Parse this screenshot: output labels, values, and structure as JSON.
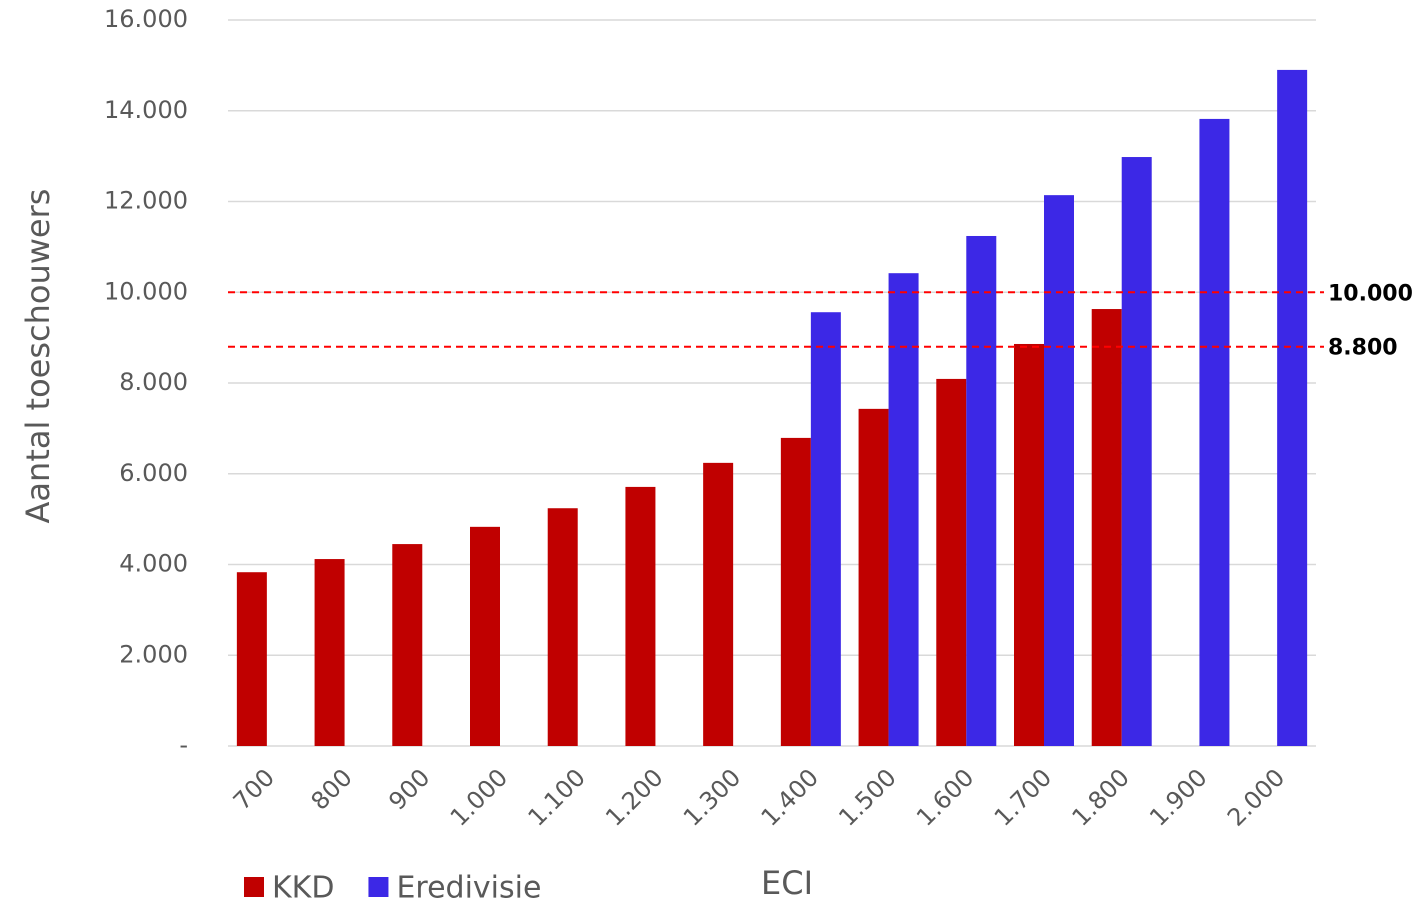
{
  "chart_data": {
    "type": "bar",
    "y_label": "Aantal toeschouwers",
    "x_label": "ECI",
    "categories": [
      "700",
      "800",
      "900",
      "1.000",
      "1.100",
      "1.200",
      "1.300",
      "1.400",
      "1.500",
      "1.600",
      "1.700",
      "1.800",
      "1.900",
      "2.000"
    ],
    "series": [
      {
        "name": "KKD",
        "color": "#c00000",
        "values": [
          3830,
          4120,
          4450,
          4830,
          5240,
          5710,
          6240,
          6790,
          7430,
          8090,
          8860,
          9630,
          null,
          null
        ]
      },
      {
        "name": "Eredivisie",
        "color": "#3c28e6",
        "values": [
          null,
          null,
          null,
          null,
          null,
          null,
          null,
          9560,
          10420,
          11240,
          12140,
          12980,
          13820,
          14900
        ]
      }
    ],
    "ylim": [
      0,
      16000
    ],
    "yticks": [
      {
        "value": 0,
        "label": "-"
      },
      {
        "value": 2000,
        "label": "2.000"
      },
      {
        "value": 4000,
        "label": "4.000"
      },
      {
        "value": 6000,
        "label": "6.000"
      },
      {
        "value": 8000,
        "label": "8.000"
      },
      {
        "value": 10000,
        "label": "10.000"
      },
      {
        "value": 12000,
        "label": "12.000"
      },
      {
        "value": 14000,
        "label": "14.000"
      },
      {
        "value": 16000,
        "label": "16.000"
      }
    ],
    "grid": true,
    "reference_lines": [
      {
        "value": 10000,
        "label": "10.000",
        "color": "#ff0000"
      },
      {
        "value": 8800,
        "label": "8.800",
        "color": "#ff0000"
      }
    ],
    "legend": "bottom-left"
  }
}
